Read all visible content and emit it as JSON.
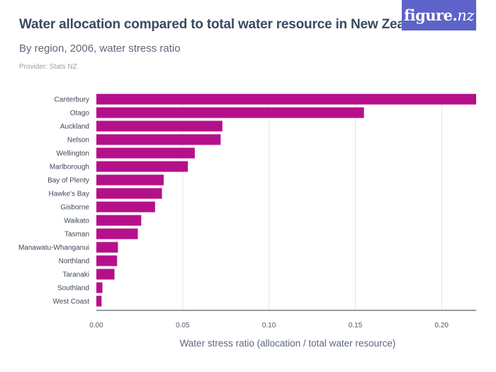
{
  "header": {
    "title": "Water allocation compared to total water resource in New Zealand",
    "subtitle": "By region, 2006, water stress ratio",
    "provider": "Provider: Stats NZ",
    "logo_main": "figure",
    "logo_dot": ".",
    "logo_tail": "nz",
    "logo_color": "#5d63c8"
  },
  "chart_data": {
    "type": "bar",
    "orientation": "horizontal",
    "xlabel": "Water stress ratio (allocation / total water resource)",
    "ylabel": "",
    "xlim": [
      0,
      0.22
    ],
    "xticks": [
      0,
      0.05,
      0.1,
      0.15,
      0.2
    ],
    "xtick_labels": [
      "0.00",
      "0.05",
      "0.10",
      "0.15",
      "0.20"
    ],
    "grid": true,
    "bar_color": "#b5108a",
    "categories": [
      "Canterbury",
      "Otago",
      "Auckland",
      "Nelson",
      "Wellington",
      "Marlborough",
      "Bay of Plenty",
      "Hawke's Bay",
      "Gisborne",
      "Waikato",
      "Tasman",
      "Manawatu-Whanganui",
      "Northland",
      "Taranaki",
      "Southland",
      "West Coast"
    ],
    "values": [
      0.22,
      0.155,
      0.073,
      0.072,
      0.057,
      0.053,
      0.039,
      0.038,
      0.034,
      0.026,
      0.024,
      0.0125,
      0.012,
      0.0105,
      0.0035,
      0.003
    ]
  }
}
